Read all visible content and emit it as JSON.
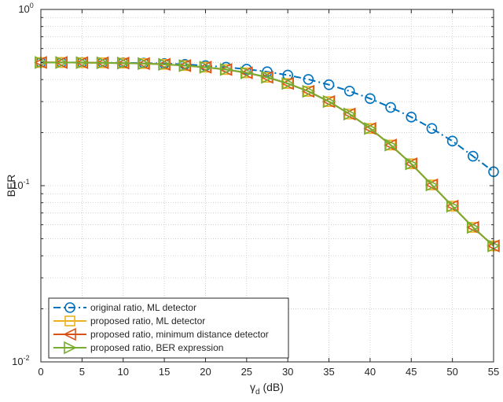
{
  "chart_data": {
    "type": "line",
    "title": "",
    "xlabel": {
      "main": "γ",
      "sub": "d",
      "unit": " (dB)"
    },
    "ylabel": "BER",
    "xlim": [
      0,
      55
    ],
    "ylim": [
      0.01,
      1
    ],
    "yscale": "log",
    "grid": true,
    "minor_grid": true,
    "legend_position": "bottom-left",
    "x_ticks": [
      "0",
      "5",
      "10",
      "15",
      "20",
      "25",
      "30",
      "35",
      "40",
      "45",
      "50",
      "55"
    ],
    "y_ticks": [
      {
        "base": "10",
        "exp": "-2",
        "value": 0.01
      },
      {
        "base": "10",
        "exp": "-1",
        "value": 0.1
      },
      {
        "base": "10",
        "exp": "0",
        "value": 1
      }
    ],
    "x": [
      0,
      2.5,
      5,
      7.5,
      10,
      12.5,
      15,
      17.5,
      20,
      22.5,
      25,
      27.5,
      30,
      32.5,
      35,
      37.5,
      40,
      42.5,
      45,
      47.5,
      50,
      52.5,
      55
    ],
    "series": [
      {
        "name": "original ratio, ML detector",
        "color": "#0072BD",
        "line_style": "dash-dot",
        "marker": "circle",
        "values": [
          0.5,
          0.5,
          0.5,
          0.499,
          0.498,
          0.496,
          0.493,
          0.488,
          0.48,
          0.47,
          0.458,
          0.443,
          0.424,
          0.401,
          0.374,
          0.344,
          0.312,
          0.278,
          0.245,
          0.211,
          0.179,
          0.147,
          0.12
        ]
      },
      {
        "name": "proposed ratio, ML detector",
        "color": "#EDB120",
        "line_style": "solid",
        "marker": "square",
        "values": [
          0.5,
          0.5,
          0.499,
          0.498,
          0.496,
          0.493,
          0.488,
          0.48,
          0.47,
          0.456,
          0.437,
          0.412,
          0.38,
          0.343,
          0.3,
          0.255,
          0.211,
          0.17,
          0.133,
          0.101,
          0.0765,
          0.058,
          0.0455
        ]
      },
      {
        "name": "proposed ratio, minimum distance detector",
        "color": "#D95319",
        "line_style": "solid",
        "marker": "triangle-left",
        "values": [
          0.5,
          0.5,
          0.499,
          0.498,
          0.496,
          0.493,
          0.488,
          0.48,
          0.47,
          0.456,
          0.437,
          0.412,
          0.38,
          0.343,
          0.3,
          0.255,
          0.211,
          0.17,
          0.133,
          0.101,
          0.0765,
          0.058,
          0.0455
        ]
      },
      {
        "name": "proposed ratio, BER expression",
        "color": "#77AC30",
        "line_style": "solid",
        "marker": "triangle-right",
        "values": [
          0.5,
          0.5,
          0.499,
          0.498,
          0.496,
          0.493,
          0.488,
          0.48,
          0.47,
          0.456,
          0.437,
          0.412,
          0.38,
          0.343,
          0.3,
          0.255,
          0.211,
          0.17,
          0.133,
          0.101,
          0.0765,
          0.058,
          0.0455
        ]
      }
    ]
  }
}
